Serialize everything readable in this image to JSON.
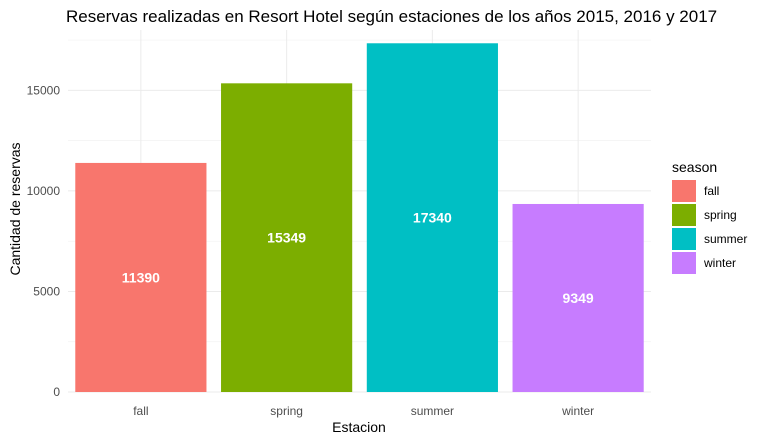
{
  "chart_data": {
    "type": "bar",
    "title": "Reservas realizadas en Resort Hotel según estaciones de los años 2015, 2016 y 2017",
    "xlabel": "Estacion",
    "ylabel": "Cantidad de reservas",
    "categories": [
      "fall",
      "spring",
      "summer",
      "winter"
    ],
    "values": [
      11390,
      15349,
      17340,
      9349
    ],
    "data_labels": [
      "11390",
      "15349",
      "17340",
      "9349"
    ],
    "colors": [
      "#F8766D",
      "#7CAE00",
      "#00BFC4",
      "#C77CFF"
    ],
    "ylim": [
      0,
      18000
    ],
    "yticks": [
      0,
      5000,
      10000,
      15000
    ],
    "ytick_labels": [
      "0",
      "5000",
      "10000",
      "15000"
    ],
    "grid": true,
    "legend": {
      "title": "season",
      "placement": "right",
      "entries": [
        "fall",
        "spring",
        "summer",
        "winter"
      ]
    }
  }
}
